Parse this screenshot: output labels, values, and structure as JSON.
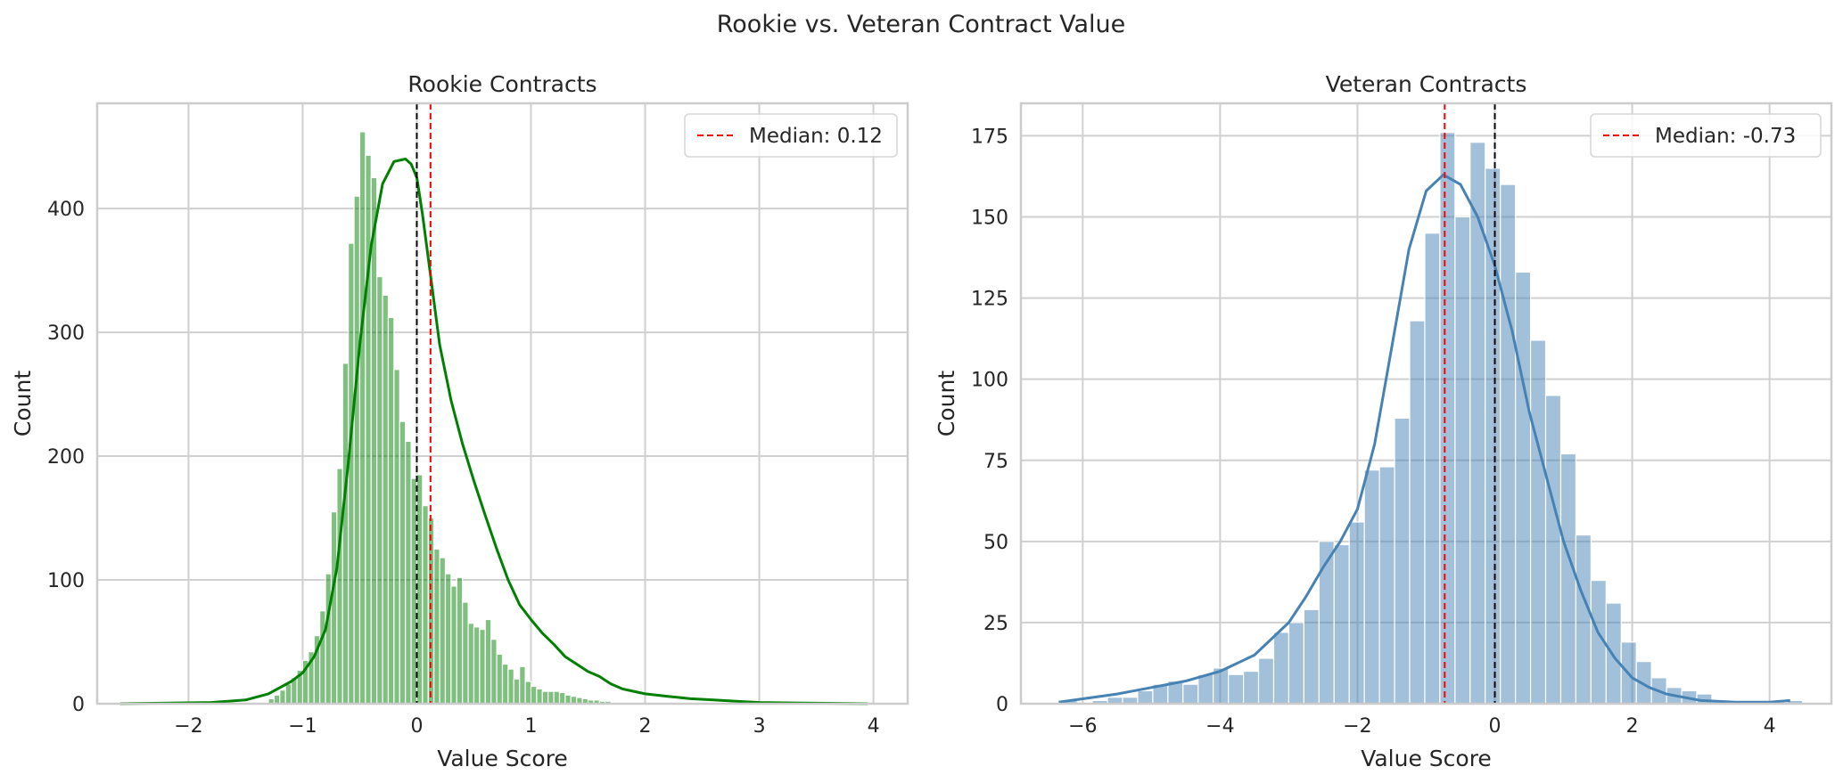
{
  "figure": {
    "suptitle": "Rookie vs. Veteran Contract Value"
  },
  "chart_data": [
    {
      "type": "bar",
      "title": "Rookie Contracts",
      "xlabel": "Value Score",
      "ylabel": "Count",
      "xlim": [
        -2.8,
        4.3
      ],
      "ylim": [
        0,
        485
      ],
      "xticks": [
        -2,
        -1,
        0,
        1,
        2,
        3,
        4
      ],
      "xtick_labels": [
        "−2",
        "−1",
        "0",
        "1",
        "2",
        "3",
        "4"
      ],
      "yticks": [
        0,
        100,
        200,
        300,
        400
      ],
      "bar_color": "#008000",
      "kde_color": "#008000",
      "grid": true,
      "legend_position": "top-right",
      "bins_start": -1.3,
      "bin_width": 0.05,
      "values": [
        4,
        7,
        11,
        16,
        21,
        27,
        35,
        42,
        55,
        75,
        105,
        155,
        190,
        275,
        372,
        410,
        462,
        443,
        425,
        345,
        330,
        312,
        270,
        228,
        212,
        182,
        185,
        160,
        150,
        125,
        118,
        105,
        95,
        102,
        82,
        65,
        62,
        60,
        68,
        52,
        40,
        32,
        28,
        20,
        30,
        18,
        14,
        12,
        10,
        10,
        10,
        9,
        7,
        6,
        5,
        4,
        3,
        3,
        2,
        2
      ],
      "kde": {
        "x": [
          -2.6,
          -1.8,
          -1.5,
          -1.3,
          -1.1,
          -1.0,
          -0.9,
          -0.8,
          -0.7,
          -0.6,
          -0.5,
          -0.4,
          -0.3,
          -0.2,
          -0.1,
          -0.05,
          0.0,
          0.05,
          0.1,
          0.2,
          0.3,
          0.4,
          0.5,
          0.6,
          0.7,
          0.8,
          0.9,
          1.0,
          1.1,
          1.2,
          1.3,
          1.4,
          1.5,
          1.6,
          1.7,
          1.8,
          1.9,
          2.0,
          2.2,
          2.4,
          2.6,
          2.8,
          3.0,
          3.4,
          3.95
        ],
        "y": [
          0,
          1,
          3,
          8,
          18,
          25,
          38,
          60,
          110,
          195,
          290,
          370,
          420,
          438,
          440,
          436,
          425,
          395,
          360,
          290,
          245,
          210,
          180,
          152,
          125,
          100,
          80,
          68,
          57,
          48,
          38,
          32,
          26,
          22,
          16,
          12,
          10,
          8,
          6,
          4,
          3,
          2,
          1,
          0.5,
          0
        ]
      },
      "reference_lines": [
        {
          "x": 0,
          "color": "#000000",
          "style": "dashed"
        },
        {
          "x": 0.12,
          "color": "#ff0000",
          "style": "dashed"
        }
      ],
      "legend": [
        {
          "label": "Median: 0.12",
          "color": "#ff0000",
          "style": "dashed"
        }
      ]
    },
    {
      "type": "bar",
      "title": "Veteran Contracts",
      "xlabel": "Value Score",
      "ylabel": "Count",
      "xlim": [
        -6.9,
        4.9
      ],
      "ylim": [
        0,
        185
      ],
      "xticks": [
        -6,
        -4,
        -2,
        0,
        2,
        4
      ],
      "xtick_labels": [
        "−6",
        "−4",
        "−2",
        "0",
        "2",
        "4"
      ],
      "yticks": [
        0,
        25,
        50,
        75,
        100,
        125,
        150,
        175
      ],
      "bar_color": "#4682b4",
      "kde_color": "#4682b4",
      "grid": true,
      "legend_position": "top-right",
      "bins_start": -6.3,
      "bin_width": 0.22,
      "values": [
        1,
        0,
        1,
        2,
        2,
        4,
        6,
        7,
        6,
        9,
        11,
        9,
        10,
        14,
        22,
        25,
        29,
        50,
        49,
        56,
        72,
        73,
        88,
        118,
        145,
        176,
        150,
        173,
        165,
        160,
        133,
        112,
        95,
        77,
        52,
        38,
        31,
        19,
        13,
        8,
        5,
        4,
        3,
        1,
        0,
        0,
        0,
        0,
        1
      ],
      "kde": {
        "x": [
          -6.35,
          -6.0,
          -5.5,
          -5.0,
          -4.5,
          -4.0,
          -3.5,
          -3.0,
          -2.75,
          -2.5,
          -2.25,
          -2.0,
          -1.75,
          -1.5,
          -1.25,
          -1.0,
          -0.75,
          -0.5,
          -0.25,
          0.0,
          0.25,
          0.5,
          0.75,
          1.0,
          1.25,
          1.5,
          1.75,
          2.0,
          2.25,
          2.5,
          3.0,
          3.5,
          4.0,
          4.3
        ],
        "y": [
          0.5,
          1.5,
          3,
          5,
          7,
          10,
          15,
          25,
          33,
          42,
          50,
          60,
          80,
          110,
          140,
          158,
          163,
          160,
          150,
          135,
          115,
          90,
          70,
          50,
          35,
          22,
          14,
          8,
          5,
          3,
          1,
          0.5,
          0.5,
          1
        ]
      },
      "reference_lines": [
        {
          "x": -0.73,
          "color": "#ff0000",
          "style": "dashed"
        },
        {
          "x": 0,
          "color": "#000000",
          "style": "dashed"
        }
      ],
      "legend": [
        {
          "label": "Median: -0.73",
          "color": "#ff0000",
          "style": "dashed"
        }
      ]
    }
  ]
}
